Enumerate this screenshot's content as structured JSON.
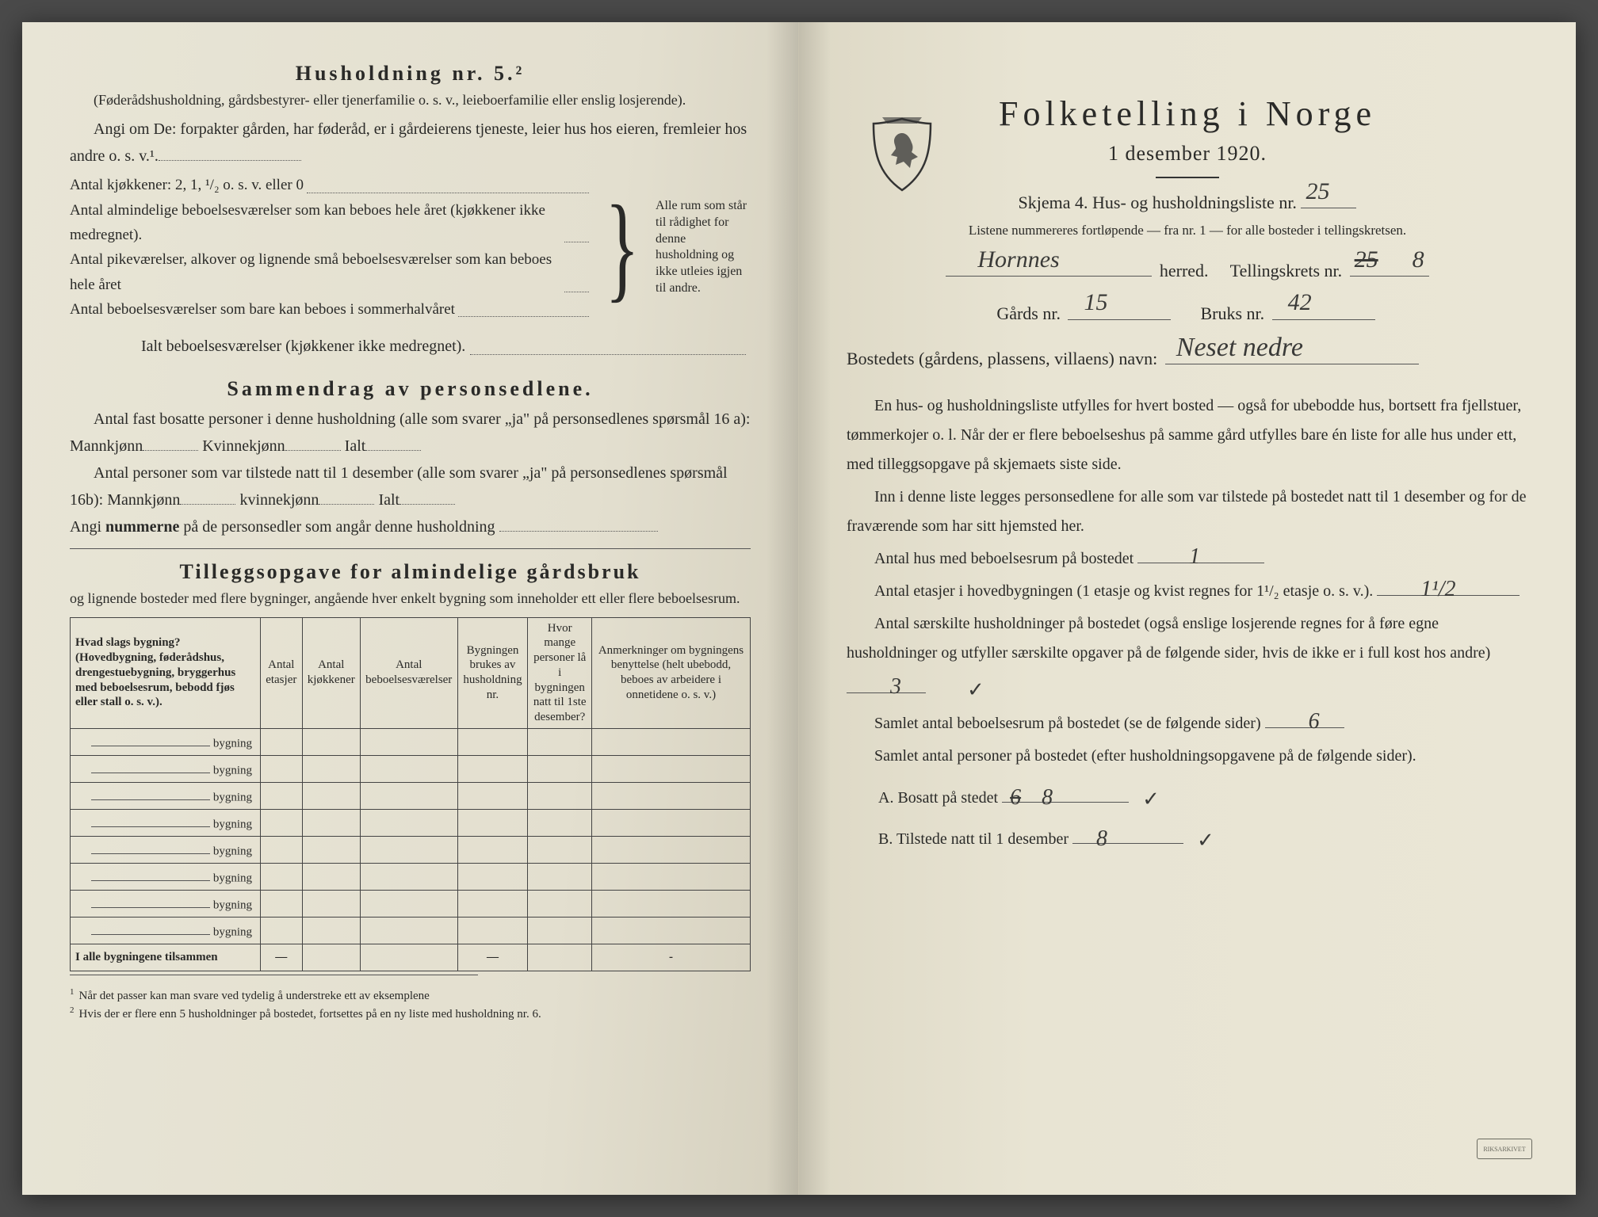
{
  "colors": {
    "paper_left": "#e3dfcf",
    "paper_right": "#eae6d6",
    "ink": "#2a2a28",
    "handwriting": "#3a3a38",
    "background": "#4a4a4a"
  },
  "typography": {
    "body_fontsize_pt": 15,
    "title_fontsize_pt": 20,
    "rp_title_fontsize_pt": 33,
    "font_family": "Times New Roman serif",
    "handwriting_family": "cursive"
  },
  "left_page": {
    "h1": "Husholdning nr. 5.²",
    "sub1": "(Føderådshusholdning, gårdsbestyrer- eller tjenerfamilie o. s. v., leieboerfamilie eller enslig losjerende).",
    "angi": "Angi om De: forpakter gården, har føderåd, er i gårdeierens tjeneste, leier hus hos eieren, fremleier hos andre o. s. v.¹.",
    "brace_lines": [
      "Antal kjøkkener: 2, 1, ¹/₂ o. s. v. eller 0",
      "Antal almindelige beboelsesværelser som kan beboes hele året (kjøkkener ikke medregnet).",
      "Antal pikeværelser, alkover og lignende små beboelsesværelser som kan beboes hele året",
      "Antal beboelsesværelser som bare kan beboes i sommerhalvåret"
    ],
    "brace_right": "Alle rum som står til rådighet for denne husholdning og ikke utleies igjen til andre.",
    "ialt_line": "Ialt beboelsesværelser (kjøkkener ikke medregnet).",
    "h2": "Sammendrag av personsedlene.",
    "s1": "Antal fast bosatte personer i denne husholdning (alle som svarer „ja\" på personsedlenes spørsmål 16 a): Mannkjønn",
    "s1b": "Kvinnekjønn",
    "s1c": "Ialt",
    "s2": "Antal personer som var tilstede natt til 1 desember (alle som svarer „ja\" på personsedlenes spørsmål 16b): Mannkjønn",
    "s2b": "kvinnekjønn",
    "s2c": "Ialt",
    "s3_label": "Angi",
    "s3_bold": "nummerne",
    "s3_rest": "på de personsedler som angår denne husholdning",
    "h3": "Tilleggsopgave for almindelige gårdsbruk",
    "h3_sub": "og lignende bosteder med flere bygninger, angående hver enkelt bygning som inneholder ett eller flere beboelsesrum.",
    "table": {
      "columns": [
        "Hvad slags bygning?\n(Hovedbygning, føderådshus, drengestuebygning, bryggerhus med beboelsesrum, bebodd fjøs eller stall o. s. v.).",
        "Antal etasjer",
        "Antal kjøkkener",
        "Antal beboelsesværelser",
        "Bygningen brukes av husholdning nr.",
        "Hvor mange personer lå i bygningen natt til 1ste desember?",
        "Anmerkninger om bygningens benyttelse (helt ubebodd, beboes av arbeidere i onnetidene o. s. v.)"
      ],
      "row_label": "bygning",
      "row_count": 8,
      "total_label": "I alle bygningene tilsammen",
      "total_cells": [
        "—",
        "",
        "",
        "—",
        "",
        "-"
      ]
    },
    "footnotes": [
      "Når det passer kan man svare ved tydelig å understreke ett av eksemplene",
      "Hvis der er flere enn 5 husholdninger på bostedet, fortsettes på en ny liste med husholdning nr. 6."
    ]
  },
  "right_page": {
    "title": "Folketelling i Norge",
    "date": "1 desember 1920.",
    "skjema_label": "Skjema 4.   Hus- og husholdningsliste nr.",
    "skjema_hw": "25",
    "listene": "Listene nummereres fortløpende — fra nr. 1 — for alle bosteder i tellingskretsen.",
    "herred_hw": "Hornnes",
    "herred_label": "herred.",
    "krets_label": "Tellingskrets nr.",
    "krets_hw": "25  8",
    "gards_label": "Gårds nr.",
    "gards_hw": "15",
    "bruks_label": "Bruks nr.",
    "bruks_hw": "42",
    "bosted_label": "Bostedets (gårdens, plassens, villaens) navn:",
    "bosted_hw": "Neset nedre",
    "para1": "En hus- og husholdningsliste utfylles for hvert bosted — også for ubebodde hus, bortsett fra fjellstuer, tømmerkojer o. l. Når der er flere beboelseshus på samme gård utfylles bare én liste for alle hus under ett, med tilleggsopgave på skjemaets siste side.",
    "para2": "Inn i denne liste legges personsedlene for alle som var tilstede på bostedet natt til 1 desember og for de fraværende som har sitt hjemsted her.",
    "q1_label": "Antal hus med beboelsesrum på bostedet",
    "q1_hw": "1",
    "q2_label": "Antal etasjer i hovedbygningen (1 etasje og kvist regnes for 1¹/₂ etasje o. s. v.).",
    "q2_hw": "1¹/2",
    "q3_label": "Antal særskilte husholdninger på bostedet (også enslige losjerende regnes for å føre egne husholdninger og utfyller særskilte opgaver på de følgende sider, hvis de ikke er i full kost hos andre)",
    "q3_hw": "3",
    "q4_label": "Samlet antal beboelsesrum på bostedet (se de følgende sider)",
    "q4_hw": "6",
    "q5_label": "Samlet antal personer på bostedet (efter husholdningsopgavene på de følgende sider).",
    "qA_label": "A.  Bosatt på stedet",
    "qA_hw": "8",
    "qA_strike": "6",
    "qB_label": "B.  Tilstede natt til 1 desember",
    "qB_hw": "8"
  }
}
